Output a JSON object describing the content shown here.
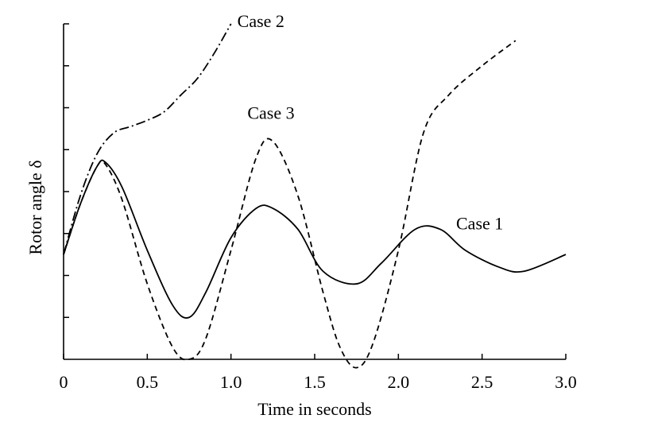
{
  "chart_data": {
    "type": "line",
    "xlabel": "Time in seconds",
    "ylabel": "Rotor angle δ",
    "xlim": [
      0,
      3.0
    ],
    "ylim": [
      0,
      8
    ],
    "x_ticks": [
      0,
      0.5,
      1.0,
      1.5,
      2.0,
      2.5,
      3.0
    ],
    "x_tick_labels": [
      "0",
      "0.5",
      "1.0",
      "1.5",
      "2.0",
      "2.5",
      "3.0"
    ],
    "y_ticks": [
      1,
      2,
      3,
      4,
      5,
      6,
      7,
      8
    ],
    "grid": false,
    "legend": "none",
    "series": [
      {
        "name": "Case 1",
        "style": "solid",
        "x": [
          0,
          0.1,
          0.2,
          0.25,
          0.35,
          0.5,
          0.65,
          0.75,
          0.85,
          1.0,
          1.15,
          1.25,
          1.4,
          1.55,
          1.75,
          1.9,
          2.1,
          2.25,
          2.4,
          2.6,
          2.75,
          3.0
        ],
        "y": [
          2.5,
          3.7,
          4.6,
          4.7,
          4.1,
          2.6,
          1.3,
          1.0,
          1.6,
          2.9,
          3.6,
          3.6,
          3.1,
          2.1,
          1.8,
          2.3,
          3.1,
          3.1,
          2.6,
          2.2,
          2.1,
          2.5
        ]
      },
      {
        "name": "Case 2",
        "style": "dash-dot",
        "x": [
          0,
          0.1,
          0.2,
          0.3,
          0.4,
          0.5,
          0.6,
          0.7,
          0.8,
          0.9,
          1.0
        ],
        "y": [
          2.5,
          3.9,
          4.9,
          5.4,
          5.55,
          5.7,
          5.9,
          6.3,
          6.7,
          7.3,
          8.0
        ]
      },
      {
        "name": "Case 3",
        "style": "dashed",
        "x": [
          0,
          0.1,
          0.2,
          0.25,
          0.35,
          0.5,
          0.65,
          0.75,
          0.85,
          1.0,
          1.15,
          1.25,
          1.4,
          1.55,
          1.65,
          1.75,
          1.85,
          2.0,
          2.15,
          2.3,
          2.5,
          2.7
        ],
        "y": [
          2.5,
          3.7,
          4.6,
          4.65,
          3.8,
          1.8,
          0.3,
          0.0,
          0.5,
          2.6,
          4.8,
          5.2,
          3.9,
          1.6,
          0.3,
          -0.2,
          0.4,
          2.6,
          5.4,
          6.3,
          7.0,
          7.6
        ]
      }
    ],
    "annotations": [
      {
        "text": "Case 1",
        "series": "Case 1",
        "x": 2.25,
        "y": 3.1
      },
      {
        "text": "Case 2",
        "series": "Case 2",
        "x": 1.0,
        "y": 8.0
      },
      {
        "text": "Case 3",
        "series": "Case 3",
        "x": 1.25,
        "y": 5.2
      }
    ]
  }
}
